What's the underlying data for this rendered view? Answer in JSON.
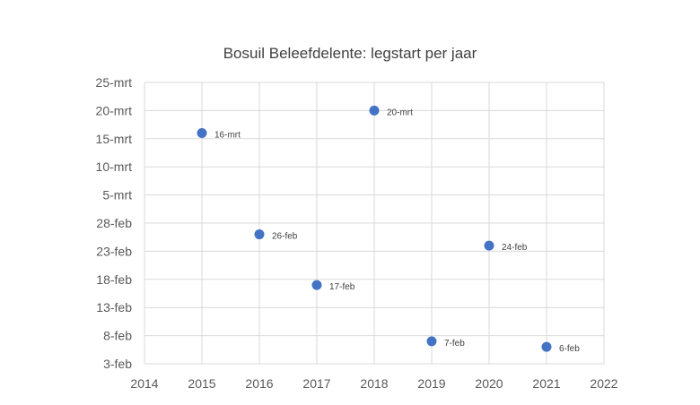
{
  "chart_data": {
    "type": "scatter",
    "title": "Bosuil Beleefdelente: legstart per jaar",
    "xlabel": "",
    "ylabel": "",
    "x_ticks": [
      "2014",
      "2015",
      "2016",
      "2017",
      "2018",
      "2019",
      "2020",
      "2021",
      "2022"
    ],
    "xlim": [
      2014,
      2022
    ],
    "y_ticks": [
      "3-feb",
      "8-feb",
      "13-feb",
      "18-feb",
      "23-feb",
      "28-feb",
      "5-mrt",
      "10-mrt",
      "15-mrt",
      "20-mrt",
      "25-mrt"
    ],
    "ylim": [
      "3-feb",
      "25-mrt"
    ],
    "grid": true,
    "legend": "none",
    "marker_color": "#4472C4",
    "points": [
      {
        "x": 2015,
        "y": "16-mrt",
        "label": "16-mrt"
      },
      {
        "x": 2016,
        "y": "26-feb",
        "label": "26-feb"
      },
      {
        "x": 2017,
        "y": "17-feb",
        "label": "17-feb"
      },
      {
        "x": 2018,
        "y": "20-mrt",
        "label": "20-mrt"
      },
      {
        "x": 2019,
        "y": "7-feb",
        "label": "7-feb"
      },
      {
        "x": 2020,
        "y": "24-feb",
        "label": "24-feb"
      },
      {
        "x": 2021,
        "y": "6-feb",
        "label": "6-feb"
      }
    ]
  }
}
